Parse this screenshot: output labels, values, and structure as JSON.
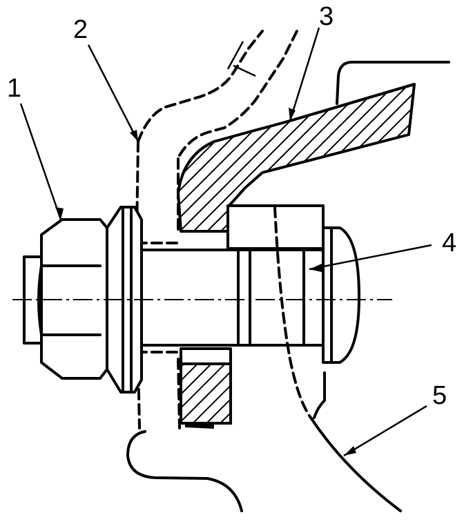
{
  "figure": {
    "callouts": [
      {
        "id": "1",
        "text": "1"
      },
      {
        "id": "2",
        "text": "2"
      },
      {
        "id": "3",
        "text": "3"
      },
      {
        "id": "4",
        "text": "4"
      },
      {
        "id": "5",
        "text": "5"
      }
    ]
  }
}
